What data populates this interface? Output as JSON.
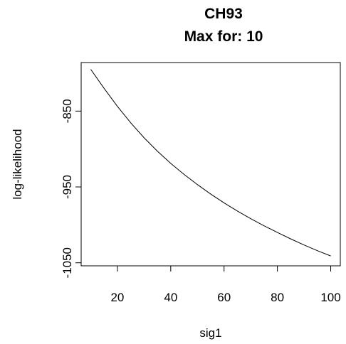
{
  "chart_data": {
    "type": "line",
    "title": "CH93",
    "subtitle": "Max for: 10",
    "xlabel": "sig1",
    "ylabel": "log-likelihood",
    "xlim": [
      6.4,
      103.6
    ],
    "ylim": [
      -1054,
      -786
    ],
    "xticks": [
      20,
      40,
      60,
      80,
      100
    ],
    "yticks": [
      -850,
      -950,
      -1050
    ],
    "grid": false,
    "series": [
      {
        "values_x": [
          10,
          15,
          20,
          25,
          30,
          35,
          40,
          45,
          50,
          55,
          60,
          65,
          70,
          75,
          80,
          85,
          90,
          95,
          100
        ],
        "values_y": [
          -795.0,
          -820.0,
          -843.8,
          -865.5,
          -885.2,
          -902.9,
          -919.0,
          -933.5,
          -946.9,
          -959.4,
          -971.0,
          -981.8,
          -991.9,
          -1001.2,
          -1010.0,
          -1018.5,
          -1026.5,
          -1034.0,
          -1041.0
        ]
      }
    ]
  }
}
